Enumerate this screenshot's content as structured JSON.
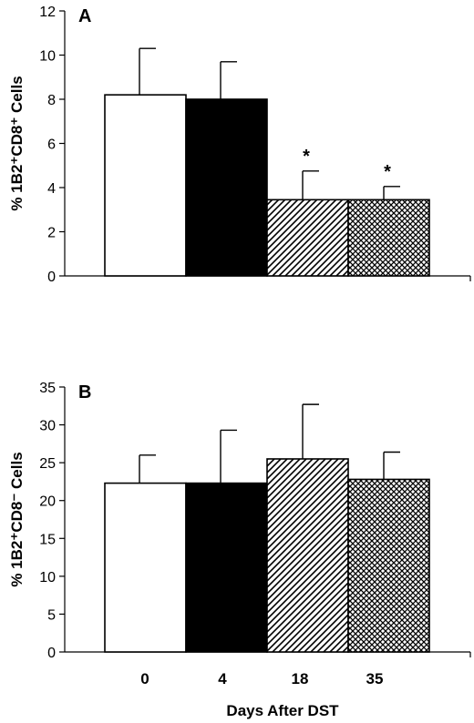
{
  "chart_data": [
    {
      "type": "bar",
      "panel_label": "A",
      "ylabel": "% 1B2⁺CD8⁺ Cells",
      "ylim": [
        0,
        12
      ],
      "yticks": [
        0,
        2,
        4,
        6,
        8,
        10,
        12
      ],
      "categories": [
        "0",
        "4",
        "18",
        "35"
      ],
      "values": [
        8.2,
        8.0,
        3.45,
        3.45
      ],
      "errors": [
        2.1,
        1.7,
        1.3,
        0.6
      ],
      "annotations": [
        "",
        "",
        "*",
        "*"
      ],
      "fills": [
        "white",
        "black",
        "diagonal-hatch",
        "crosshatch"
      ]
    },
    {
      "type": "bar",
      "panel_label": "B",
      "ylabel": "% 1B2⁺CD8⁻ Cells",
      "ylim": [
        0,
        35
      ],
      "yticks": [
        0,
        5,
        10,
        15,
        20,
        25,
        30,
        35
      ],
      "categories": [
        "0",
        "4",
        "18",
        "35"
      ],
      "values": [
        22.3,
        22.3,
        25.5,
        22.8
      ],
      "errors": [
        3.7,
        7.0,
        7.2,
        3.6
      ],
      "annotations": [
        "",
        "",
        "",
        ""
      ],
      "fills": [
        "white",
        "black",
        "diagonal-hatch",
        "crosshatch"
      ],
      "xlabel": "Days   After   DST"
    }
  ],
  "colors": {
    "ink": "#000000",
    "background": "#ffffff"
  }
}
